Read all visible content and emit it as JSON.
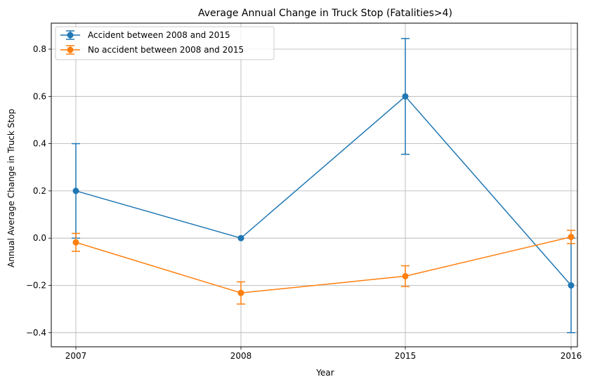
{
  "chart_data": {
    "type": "line",
    "title": "Average Annual Change in Truck Stop (Fatalities>4)",
    "xlabel": "Year",
    "ylabel": "Annual Average Change in Truck Stop",
    "categories": [
      "2007",
      "2008",
      "2015",
      "2016"
    ],
    "ylim": [
      -0.46,
      0.91
    ],
    "yticks": [
      -0.4,
      -0.2,
      0.0,
      0.2,
      0.4,
      0.6,
      0.8
    ],
    "ytick_labels": [
      "−0.4",
      "−0.2",
      "0.0",
      "0.2",
      "0.4",
      "0.6",
      "0.8"
    ],
    "grid": true,
    "legend_position": "top-left",
    "series": [
      {
        "name": "Accident between 2008 and 2015",
        "color": "#1f77b4",
        "values": [
          0.2,
          0.0,
          0.6,
          -0.2
        ],
        "errors": [
          0.2,
          0.0,
          0.245,
          0.2
        ]
      },
      {
        "name": "No accident between 2008 and 2015",
        "color": "#ff7f0e",
        "values": [
          -0.018,
          -0.232,
          -0.161,
          0.005
        ],
        "errors": [
          0.038,
          0.047,
          0.044,
          0.028
        ]
      }
    ]
  }
}
